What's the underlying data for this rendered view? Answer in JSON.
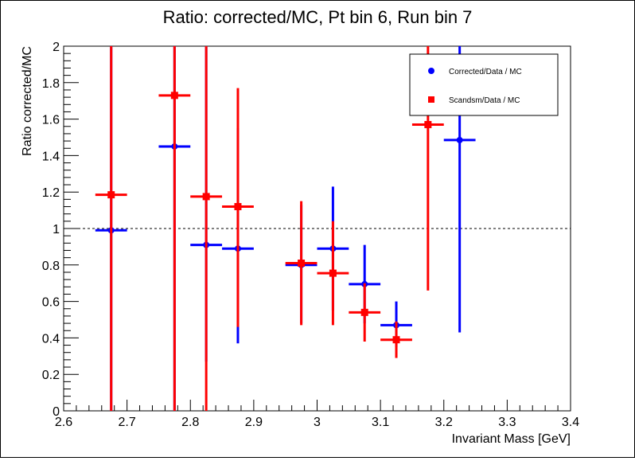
{
  "chart_data": {
    "type": "scatter",
    "title": "Ratio: corrected/MC, Pt bin 6, Run bin 7",
    "xlabel": "Invariant Mass [GeV]",
    "ylabel": "Ratio corrected/MC",
    "xlim": [
      2.6,
      3.4
    ],
    "ylim": [
      0,
      2
    ],
    "xticks": [
      "2.6",
      "2.7",
      "2.8",
      "2.9",
      "3",
      "3.1",
      "3.2",
      "3.3",
      "3.4"
    ],
    "yticks": [
      "0",
      "0.2",
      "0.4",
      "0.6",
      "0.8",
      "1",
      "1.2",
      "1.4",
      "1.6",
      "1.8",
      "2"
    ],
    "reference_line": 1,
    "legend_position": "top-right",
    "series": [
      {
        "name": "Corrected/Data / MC",
        "color": "#0000ff",
        "marker": "circle",
        "points": [
          {
            "x": 2.675,
            "y": 0.99,
            "xerr": 0.025,
            "ylo": 0.0,
            "yhi": 2.0
          },
          {
            "x": 2.775,
            "y": 1.45,
            "xerr": 0.025,
            "ylo": 0.0,
            "yhi": 2.0
          },
          {
            "x": 2.825,
            "y": 0.91,
            "xerr": 0.025,
            "ylo": 0.27,
            "yhi": 2.0
          },
          {
            "x": 2.875,
            "y": 0.89,
            "xerr": 0.025,
            "ylo": 0.37,
            "yhi": 1.55
          },
          {
            "x": 2.975,
            "y": 0.8,
            "xerr": 0.025,
            "ylo": 0.48,
            "yhi": 1.13
          },
          {
            "x": 3.025,
            "y": 0.89,
            "xerr": 0.025,
            "ylo": 0.55,
            "yhi": 1.23
          },
          {
            "x": 3.075,
            "y": 0.695,
            "xerr": 0.025,
            "ylo": 0.48,
            "yhi": 0.91
          },
          {
            "x": 3.125,
            "y": 0.47,
            "xerr": 0.025,
            "ylo": 0.35,
            "yhi": 0.6
          },
          {
            "x": 3.225,
            "y": 1.485,
            "xerr": 0.025,
            "ylo": 0.43,
            "yhi": 2.0
          }
        ]
      },
      {
        "name": "Scandsm/Data / MC",
        "color": "#ff0000",
        "marker": "square",
        "points": [
          {
            "x": 2.675,
            "y": 1.185,
            "xerr": 0.025,
            "ylo": 0.0,
            "yhi": 2.0
          },
          {
            "x": 2.775,
            "y": 1.73,
            "xerr": 0.025,
            "ylo": 0.0,
            "yhi": 2.0
          },
          {
            "x": 2.825,
            "y": 1.175,
            "xerr": 0.025,
            "ylo": 0.0,
            "yhi": 2.0
          },
          {
            "x": 2.875,
            "y": 1.12,
            "xerr": 0.025,
            "ylo": 0.46,
            "yhi": 1.77
          },
          {
            "x": 2.975,
            "y": 0.81,
            "xerr": 0.025,
            "ylo": 0.47,
            "yhi": 1.15
          },
          {
            "x": 3.025,
            "y": 0.755,
            "xerr": 0.025,
            "ylo": 0.47,
            "yhi": 1.04
          },
          {
            "x": 3.075,
            "y": 0.54,
            "xerr": 0.025,
            "ylo": 0.38,
            "yhi": 0.7
          },
          {
            "x": 3.125,
            "y": 0.39,
            "xerr": 0.025,
            "ylo": 0.29,
            "yhi": 0.49
          },
          {
            "x": 3.175,
            "y": 1.57,
            "xerr": 0.025,
            "ylo": 0.66,
            "yhi": 2.0
          }
        ]
      }
    ]
  }
}
